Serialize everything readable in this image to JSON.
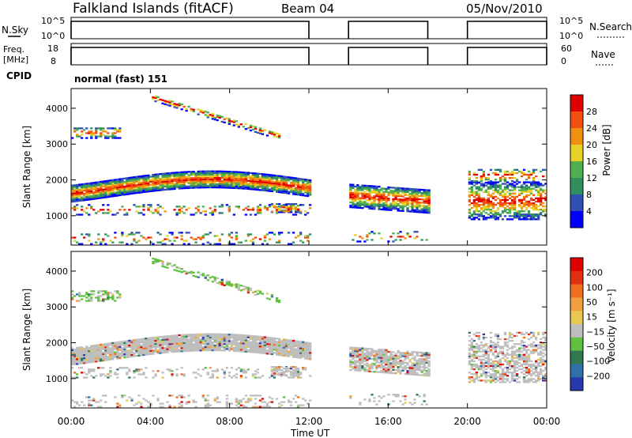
{
  "header": {
    "title": "Falkland Islands (fitACF)",
    "beam": "Beam 04",
    "date": "05/Nov/2010"
  },
  "panels": {
    "nsky": {
      "left_label": "N.Sky",
      "left_ticks": [
        "10^5",
        "10^0"
      ],
      "right_ticks": [
        "10^5",
        "10^0"
      ],
      "right_label": "N.Search"
    },
    "freq": {
      "left_label_1": "Freq.",
      "left_label_2": "[MHz]",
      "left_ticks": [
        "18",
        "8"
      ],
      "right_ticks": [
        "60",
        "0"
      ],
      "right_label": "Nave"
    },
    "cpid": {
      "label": "CPID",
      "value": "normal (fast) 151"
    }
  },
  "colors": {
    "power_scale": [
      "#0000ff",
      "#2f4fb4",
      "#2f8f5f",
      "#4fb04f",
      "#e8d028",
      "#f09010",
      "#f05010",
      "#e00000"
    ],
    "velocity_scale": [
      "#2838b0",
      "#3070a8",
      "#307850",
      "#60c040",
      "#bebebe",
      "#e8c850",
      "#f0a040",
      "#f07020",
      "#e03010",
      "#e00000"
    ]
  },
  "chart_data": [
    {
      "type": "heatmap",
      "panel": "power",
      "title": "",
      "xlabel": "Time UT",
      "ylabel": "Slant Range [km]",
      "x_ticks": [
        "00:00",
        "04:00",
        "08:00",
        "12:00",
        "16:00",
        "20:00",
        "00:00"
      ],
      "xlim": [
        0,
        24
      ],
      "y_ticks": [
        "1000",
        "2000",
        "3000",
        "4000"
      ],
      "ylim": [
        180,
        4550
      ],
      "colorbar": {
        "label": "Power [dB]",
        "ticks": [
          "4",
          "8",
          "12",
          "16",
          "20",
          "24",
          "28"
        ]
      },
      "data_gaps_hours": [
        [
          12,
          14
        ],
        [
          18,
          20
        ]
      ]
    },
    {
      "type": "heatmap",
      "panel": "velocity",
      "title": "",
      "xlabel": "Time UT",
      "ylabel": "Slant Range [km]",
      "x_ticks": [
        "00:00",
        "04:00",
        "08:00",
        "12:00",
        "16:00",
        "20:00",
        "00:00"
      ],
      "xlim": [
        0,
        24
      ],
      "y_ticks": [
        "1000",
        "2000",
        "3000",
        "4000"
      ],
      "ylim": [
        180,
        4550
      ],
      "colorbar": {
        "label": "Velocity [m s⁻¹]",
        "ticks": [
          "200",
          "100",
          "50",
          "15",
          "−15",
          "−50",
          "−100",
          "−200"
        ]
      },
      "data_gaps_hours": [
        [
          12,
          14
        ],
        [
          18,
          20
        ]
      ]
    }
  ],
  "axis": {
    "time_label": "Time UT"
  }
}
